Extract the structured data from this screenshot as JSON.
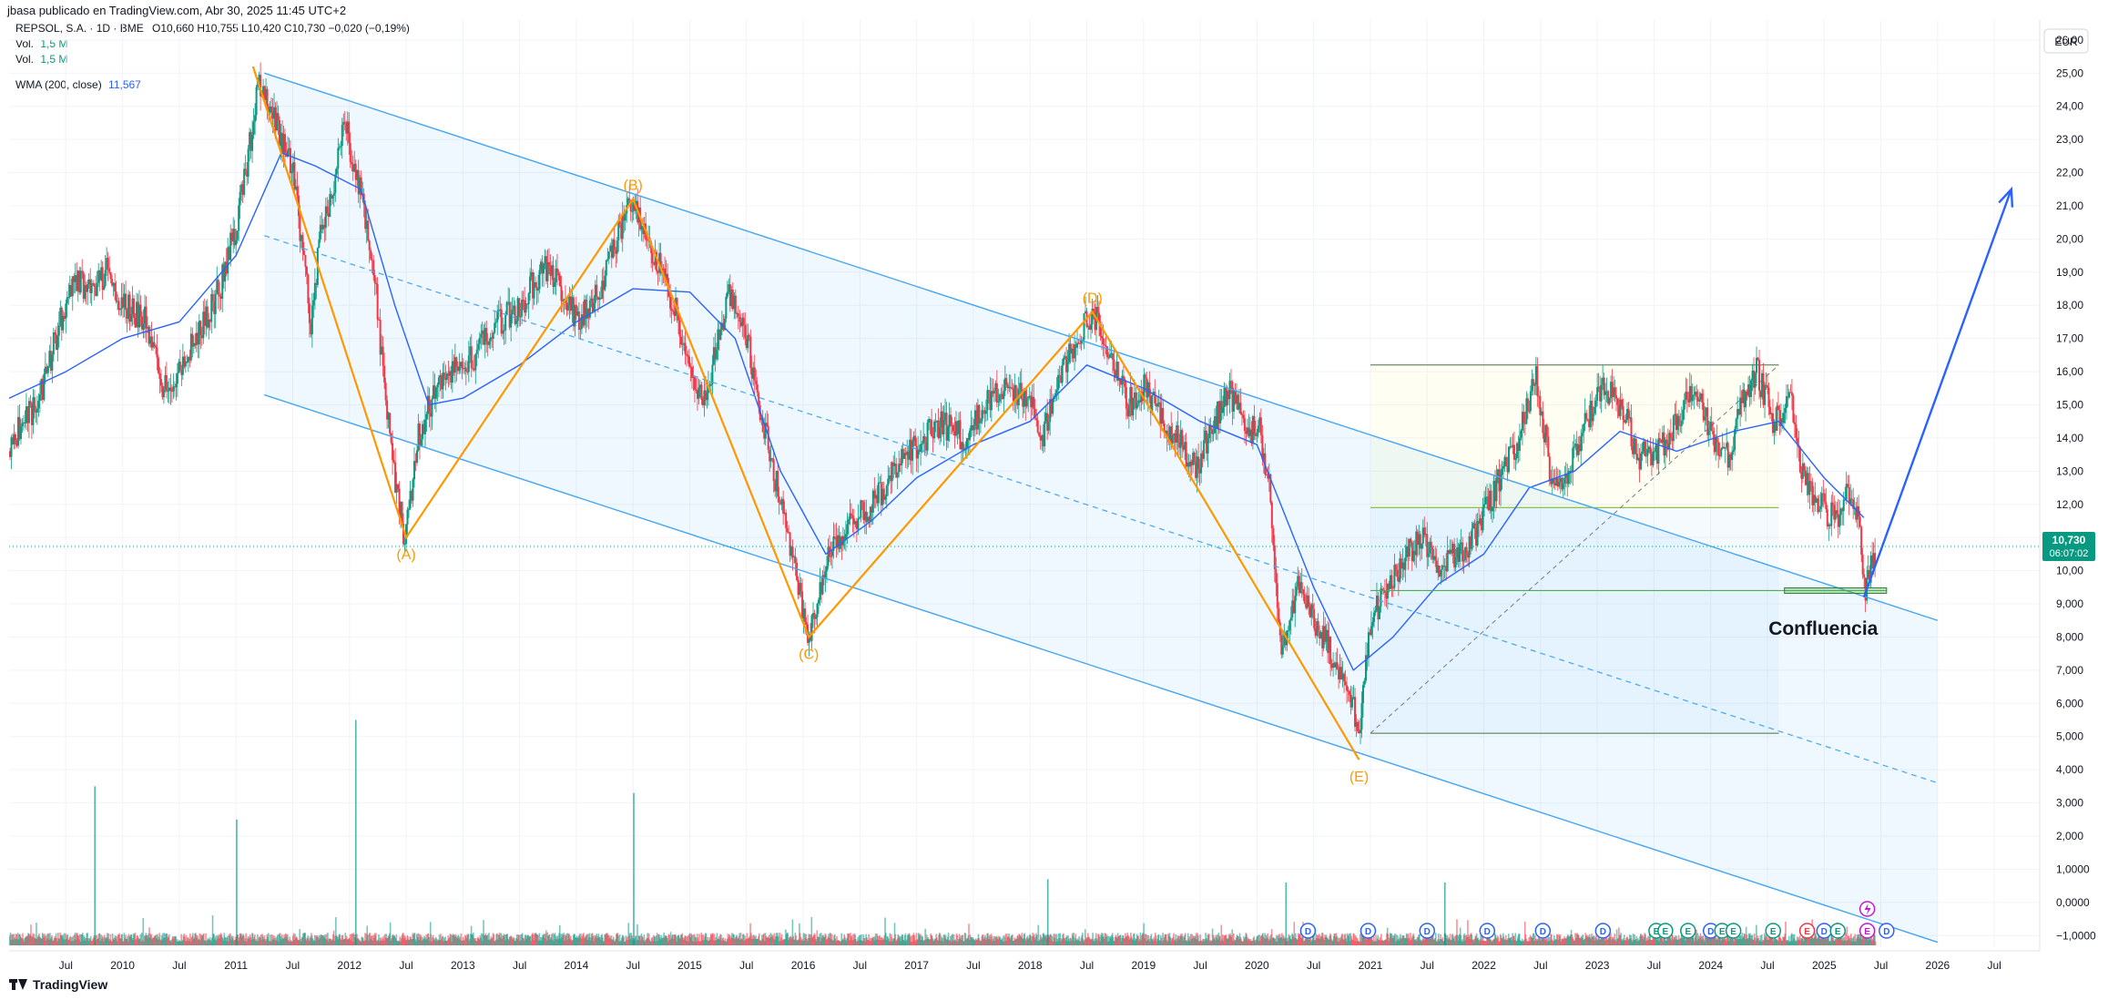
{
  "header": {
    "published": "jbasa publicado en TradingView.com, Abr 30, 2025 11:45 UTC+2",
    "symbol_line": "REPSOL, S.A. · 1D · BME",
    "ohlc": "O10,660 H10,755 L10,420 C10,730 −0,020 (−0,19%)",
    "vol1_label": "Vol.",
    "vol1_value": "1,5 M",
    "vol2_label": "Vol.",
    "vol2_value": "1,5 M",
    "wma_label": "WMA (200, close)",
    "wma_value": "11,567"
  },
  "footer": {
    "brand": "TradingView"
  },
  "chart_data": {
    "type": "candlestick",
    "currency": "EUR",
    "price_ticks": [
      "26,00",
      "25,00",
      "24,00",
      "23,00",
      "22,00",
      "21,00",
      "20,00",
      "19,00",
      "18,00",
      "17,00",
      "16,00",
      "15,00",
      "14,00",
      "13,00",
      "12,00",
      "11,00",
      "10,00",
      "9,000",
      "8,000",
      "7,000",
      "6,000",
      "5,000",
      "4,000",
      "3,000",
      "2,000",
      "1,0000",
      "0,0000",
      "−1,0000"
    ],
    "last_price": "10,730",
    "countdown": "06:07:02",
    "x_ticks": [
      {
        "label": "Jul",
        "t": 2009.5
      },
      {
        "label": "2010",
        "t": 2010.0
      },
      {
        "label": "Jul",
        "t": 2010.5
      },
      {
        "label": "2011",
        "t": 2011.0
      },
      {
        "label": "Jul",
        "t": 2011.5
      },
      {
        "label": "2012",
        "t": 2012.0
      },
      {
        "label": "Jul",
        "t": 2012.5
      },
      {
        "label": "2013",
        "t": 2013.0
      },
      {
        "label": "Jul",
        "t": 2013.5
      },
      {
        "label": "2014",
        "t": 2014.0
      },
      {
        "label": "Jul",
        "t": 2014.5
      },
      {
        "label": "2015",
        "t": 2015.0
      },
      {
        "label": "Jul",
        "t": 2015.5
      },
      {
        "label": "2016",
        "t": 2016.0
      },
      {
        "label": "Jul",
        "t": 2016.5
      },
      {
        "label": "2017",
        "t": 2017.0
      },
      {
        "label": "Jul",
        "t": 2017.5
      },
      {
        "label": "2018",
        "t": 2018.0
      },
      {
        "label": "Jul",
        "t": 2018.5
      },
      {
        "label": "2019",
        "t": 2019.0
      },
      {
        "label": "Jul",
        "t": 2019.5
      },
      {
        "label": "2020",
        "t": 2020.0
      },
      {
        "label": "Jul",
        "t": 2020.5
      },
      {
        "label": "2021",
        "t": 2021.0
      },
      {
        "label": "Jul",
        "t": 2021.5
      },
      {
        "label": "2022",
        "t": 2022.0
      },
      {
        "label": "Jul",
        "t": 2022.5
      },
      {
        "label": "2023",
        "t": 2023.0
      },
      {
        "label": "Jul",
        "t": 2023.5
      },
      {
        "label": "2024",
        "t": 2024.0
      },
      {
        "label": "Jul",
        "t": 2024.5
      },
      {
        "label": "2025",
        "t": 2025.0
      },
      {
        "label": "Jul",
        "t": 2025.5
      },
      {
        "label": "2026",
        "t": 2026.0
      },
      {
        "label": "Jul",
        "t": 2026.5
      }
    ],
    "price_path": [
      [
        2009.0,
        13.6
      ],
      [
        2009.1,
        14.5
      ],
      [
        2009.25,
        15.0
      ],
      [
        2009.4,
        17.0
      ],
      [
        2009.55,
        18.8
      ],
      [
        2009.7,
        18.5
      ],
      [
        2009.85,
        19.0
      ],
      [
        2010.0,
        18.0
      ],
      [
        2010.2,
        17.5
      ],
      [
        2010.35,
        15.5
      ],
      [
        2010.5,
        16.0
      ],
      [
        2010.7,
        17.5
      ],
      [
        2010.85,
        18.5
      ],
      [
        2011.0,
        20.5
      ],
      [
        2011.1,
        22.5
      ],
      [
        2011.2,
        24.8
      ],
      [
        2011.3,
        24.0
      ],
      [
        2011.4,
        23.0
      ],
      [
        2011.5,
        22.0
      ],
      [
        2011.65,
        17.5
      ],
      [
        2011.75,
        20.5
      ],
      [
        2011.85,
        21.5
      ],
      [
        2011.95,
        23.5
      ],
      [
        2012.05,
        22.0
      ],
      [
        2012.2,
        19.5
      ],
      [
        2012.3,
        15.5
      ],
      [
        2012.4,
        12.5
      ],
      [
        2012.48,
        11.0
      ],
      [
        2012.6,
        14.0
      ],
      [
        2012.75,
        15.5
      ],
      [
        2012.9,
        16.0
      ],
      [
        2013.1,
        16.5
      ],
      [
        2013.3,
        17.5
      ],
      [
        2013.5,
        18.0
      ],
      [
        2013.7,
        19.2
      ],
      [
        2013.85,
        18.5
      ],
      [
        2014.0,
        17.5
      ],
      [
        2014.2,
        18.5
      ],
      [
        2014.4,
        20.5
      ],
      [
        2014.5,
        21.2
      ],
      [
        2014.6,
        20.0
      ],
      [
        2014.75,
        19.0
      ],
      [
        2014.9,
        17.5
      ],
      [
        2015.0,
        16.0
      ],
      [
        2015.1,
        15.0
      ],
      [
        2015.25,
        17.0
      ],
      [
        2015.35,
        18.4
      ],
      [
        2015.5,
        17.0
      ],
      [
        2015.6,
        15.0
      ],
      [
        2015.8,
        12.0
      ],
      [
        2015.95,
        9.5
      ],
      [
        2016.05,
        8.0
      ],
      [
        2016.2,
        10.5
      ],
      [
        2016.4,
        11.5
      ],
      [
        2016.6,
        12.0
      ],
      [
        2016.8,
        13.0
      ],
      [
        2017.0,
        13.8
      ],
      [
        2017.2,
        14.5
      ],
      [
        2017.4,
        14.0
      ],
      [
        2017.6,
        15.0
      ],
      [
        2017.8,
        15.5
      ],
      [
        2018.0,
        15.0
      ],
      [
        2018.1,
        14.0
      ],
      [
        2018.25,
        16.0
      ],
      [
        2018.4,
        17.0
      ],
      [
        2018.55,
        17.8
      ],
      [
        2018.7,
        16.5
      ],
      [
        2018.85,
        15.0
      ],
      [
        2019.0,
        15.5
      ],
      [
        2019.15,
        14.5
      ],
      [
        2019.3,
        14.0
      ],
      [
        2019.45,
        13.0
      ],
      [
        2019.6,
        14.5
      ],
      [
        2019.75,
        15.5
      ],
      [
        2019.9,
        14.0
      ],
      [
        2020.0,
        14.5
      ],
      [
        2020.1,
        12.5
      ],
      [
        2020.2,
        7.5
      ],
      [
        2020.35,
        9.5
      ],
      [
        2020.5,
        8.5
      ],
      [
        2020.65,
        7.5
      ],
      [
        2020.8,
        6.0
      ],
      [
        2020.9,
        5.5
      ],
      [
        2021.0,
        8.5
      ],
      [
        2021.15,
        9.5
      ],
      [
        2021.3,
        10.5
      ],
      [
        2021.45,
        11.0
      ],
      [
        2021.6,
        10.0
      ],
      [
        2021.75,
        10.5
      ],
      [
        2021.9,
        11.0
      ],
      [
        2022.1,
        12.5
      ],
      [
        2022.3,
        14.0
      ],
      [
        2022.45,
        16.0
      ],
      [
        2022.6,
        12.5
      ],
      [
        2022.75,
        13.0
      ],
      [
        2022.9,
        14.5
      ],
      [
        2023.05,
        15.5
      ],
      [
        2023.2,
        15.0
      ],
      [
        2023.35,
        13.5
      ],
      [
        2023.5,
        13.5
      ],
      [
        2023.7,
        14.5
      ],
      [
        2023.85,
        15.5
      ],
      [
        2024.0,
        14.0
      ],
      [
        2024.15,
        13.5
      ],
      [
        2024.3,
        15.5
      ],
      [
        2024.4,
        16.0
      ],
      [
        2024.55,
        14.5
      ],
      [
        2024.7,
        15.0
      ],
      [
        2024.8,
        13.0
      ],
      [
        2024.95,
        12.0
      ],
      [
        2025.1,
        11.5
      ],
      [
        2025.2,
        12.5
      ],
      [
        2025.3,
        11.5
      ],
      [
        2025.35,
        9.4
      ],
      [
        2025.45,
        10.7
      ]
    ],
    "wma_path": [
      [
        2009.0,
        15.2
      ],
      [
        2009.5,
        16.0
      ],
      [
        2010.0,
        17.0
      ],
      [
        2010.5,
        17.5
      ],
      [
        2011.0,
        19.5
      ],
      [
        2011.4,
        22.6
      ],
      [
        2011.7,
        22.2
      ],
      [
        2012.1,
        21.5
      ],
      [
        2012.4,
        18.0
      ],
      [
        2012.7,
        15.0
      ],
      [
        2013.0,
        15.2
      ],
      [
        2013.5,
        16.2
      ],
      [
        2014.0,
        17.5
      ],
      [
        2014.5,
        18.5
      ],
      [
        2015.0,
        18.4
      ],
      [
        2015.4,
        17.0
      ],
      [
        2015.8,
        13.0
      ],
      [
        2016.2,
        10.5
      ],
      [
        2016.6,
        11.5
      ],
      [
        2017.0,
        12.8
      ],
      [
        2017.5,
        13.8
      ],
      [
        2018.0,
        14.5
      ],
      [
        2018.5,
        16.2
      ],
      [
        2019.0,
        15.5
      ],
      [
        2019.5,
        14.5
      ],
      [
        2020.0,
        13.8
      ],
      [
        2020.5,
        9.5
      ],
      [
        2020.85,
        7.0
      ],
      [
        2021.2,
        8.0
      ],
      [
        2021.6,
        9.6
      ],
      [
        2022.0,
        10.5
      ],
      [
        2022.4,
        12.5
      ],
      [
        2022.8,
        13.0
      ],
      [
        2023.2,
        14.2
      ],
      [
        2023.7,
        13.6
      ],
      [
        2024.2,
        14.2
      ],
      [
        2024.6,
        14.5
      ],
      [
        2025.0,
        12.8
      ],
      [
        2025.35,
        11.6
      ]
    ],
    "channel": {
      "upper_line": {
        "p1": [
          2011.25,
          25.0
        ],
        "p2": [
          2026.0,
          8.5
        ]
      },
      "mid_line": {
        "p1": [
          2011.25,
          20.1
        ],
        "p2": [
          2026.0,
          3.6
        ]
      },
      "lower_line": {
        "p1": [
          2011.25,
          15.3
        ],
        "p2": [
          2026.0,
          -1.2
        ]
      }
    },
    "wave_labels": [
      {
        "label": "(A)",
        "t": 2012.5,
        "price": 11.0
      },
      {
        "label": "(B)",
        "t": 2014.5,
        "price": 21.2
      },
      {
        "label": "(C)",
        "t": 2016.05,
        "price": 8.0
      },
      {
        "label": "(D)",
        "t": 2018.55,
        "price": 17.8
      },
      {
        "label": "(E)",
        "t": 2020.9,
        "price": 4.3
      }
    ],
    "wave_points": [
      [
        2011.15,
        25.2
      ],
      [
        2012.5,
        11.0
      ],
      [
        2014.5,
        21.2
      ],
      [
        2016.05,
        8.0
      ],
      [
        2018.55,
        17.8
      ],
      [
        2020.9,
        4.3
      ]
    ],
    "range_box": {
      "t1": 2021.0,
      "t2": 2024.6,
      "top": 16.2,
      "mid": 11.9,
      "bottom": 5.1
    },
    "support_level": {
      "t1": 2021.0,
      "t2": 2025.55,
      "price": 9.4
    },
    "annotation": "Confluencia",
    "projection_arrow": {
      "from": [
        2025.35,
        9.2
      ],
      "to": [
        2026.65,
        21.5
      ]
    },
    "event_markers": [
      {
        "label": "D",
        "t": 2020.45,
        "color": "#2962ff"
      },
      {
        "label": "D",
        "t": 2020.98,
        "color": "#2962ff"
      },
      {
        "label": "D",
        "t": 2021.5,
        "color": "#2962ff"
      },
      {
        "label": "D",
        "t": 2022.03,
        "color": "#2962ff"
      },
      {
        "label": "D",
        "t": 2022.52,
        "color": "#2962ff"
      },
      {
        "label": "D",
        "t": 2023.05,
        "color": "#2962ff"
      },
      {
        "label": "E",
        "t": 2023.52,
        "color": "#089981"
      },
      {
        "label": "E",
        "t": 2023.6,
        "color": "#089981"
      },
      {
        "label": "E",
        "t": 2023.8,
        "color": "#089981"
      },
      {
        "label": "D",
        "t": 2024.0,
        "color": "#2962ff"
      },
      {
        "label": "E",
        "t": 2024.1,
        "color": "#089981"
      },
      {
        "label": "E",
        "t": 2024.2,
        "color": "#089981"
      },
      {
        "label": "E",
        "t": 2024.55,
        "color": "#089981"
      },
      {
        "label": "E",
        "t": 2024.85,
        "color": "#f23645"
      },
      {
        "label": "D",
        "t": 2025.0,
        "color": "#2962ff"
      },
      {
        "label": "E",
        "t": 2025.12,
        "color": "#089981"
      },
      {
        "label": "E",
        "t": 2025.38,
        "color": "#c218d4"
      },
      {
        "label": "D",
        "t": 2025.55,
        "color": "#2962ff"
      }
    ],
    "volume_spikes": [
      [
        2009.75,
        3.5
      ],
      [
        2011.0,
        2.5
      ],
      [
        2012.05,
        5.5
      ],
      [
        2014.5,
        3.3
      ],
      [
        2018.15,
        0.7
      ],
      [
        2020.25,
        0.6
      ],
      [
        2021.65,
        0.6
      ]
    ]
  }
}
